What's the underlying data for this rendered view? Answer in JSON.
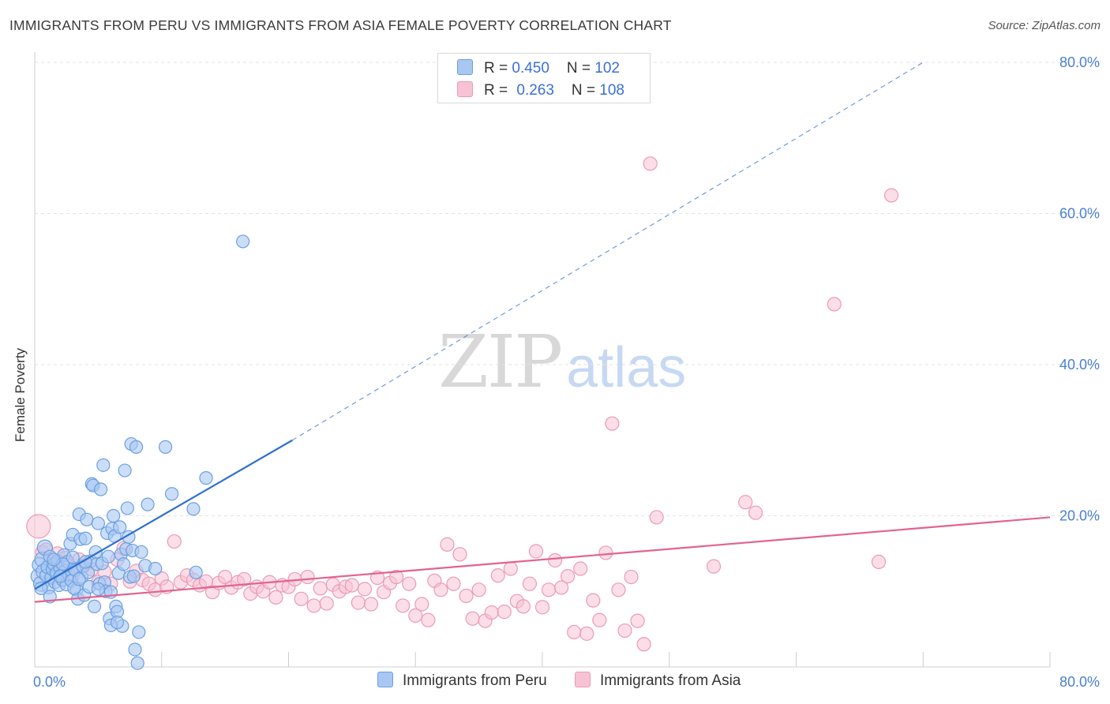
{
  "header": {
    "title": "IMMIGRANTS FROM PERU VS IMMIGRANTS FROM ASIA FEMALE POVERTY CORRELATION CHART",
    "source": "Source: ZipAtlas.com"
  },
  "watermark": {
    "zip": "ZIP",
    "atlas": "atlas"
  },
  "legend": {
    "rows": [
      {
        "r_label": "R = ",
        "r_value": "0.450",
        "n_label": "N = ",
        "n_value": "102",
        "color": "#7aa7e8"
      },
      {
        "r_label": "R = ",
        "r_value": "0.263",
        "n_label": "N = ",
        "n_value": "108",
        "color": "#f2a6bf"
      }
    ]
  },
  "colors": {
    "peru_fill": "#a8c8f3",
    "peru_stroke": "#6d9fe0",
    "peru_line": "#2f6fd1",
    "asia_fill": "#f7c3d4",
    "asia_stroke": "#ec9bb7",
    "asia_line": "#e2638f",
    "axis_text": "#4a7fd4",
    "grid": "#e3e3e3"
  },
  "chart_data": {
    "type": "scatter",
    "title": "IMMIGRANTS FROM PERU VS IMMIGRANTS FROM ASIA FEMALE POVERTY CORRELATION CHART",
    "xlabel": "",
    "ylabel": "Female Poverty",
    "xlim": [
      0,
      80
    ],
    "ylim": [
      0,
      80
    ],
    "x_tick_labels": [
      "0.0%",
      "80.0%"
    ],
    "y_ticks": [
      20,
      40,
      60,
      80
    ],
    "y_tick_labels": [
      "20.0%",
      "40.0%",
      "60.0%",
      "80.0%"
    ],
    "series": [
      {
        "name": "Immigrants from Peru",
        "R": 0.45,
        "N": 102,
        "trend": {
          "x0": 0,
          "y0": 10.3,
          "x1": 20.3,
          "y1": 30.0,
          "dashed_to_x": 70,
          "dashed_to_y": 80.0
        },
        "points": [
          [
            0.3,
            12.0
          ],
          [
            0.4,
            13.5
          ],
          [
            0.5,
            11.0
          ],
          [
            0.6,
            14.2
          ],
          [
            0.7,
            12.6
          ],
          [
            0.8,
            15.8
          ],
          [
            0.9,
            12.1
          ],
          [
            1.0,
            13.2
          ],
          [
            1.1,
            10.5
          ],
          [
            1.2,
            14.6
          ],
          [
            1.3,
            11.8
          ],
          [
            1.4,
            12.9
          ],
          [
            1.5,
            13.6
          ],
          [
            1.6,
            11.2
          ],
          [
            1.7,
            12.4
          ],
          [
            1.8,
            14.0
          ],
          [
            1.9,
            10.8
          ],
          [
            2.0,
            13.1
          ],
          [
            2.1,
            12.0
          ],
          [
            2.2,
            11.5
          ],
          [
            2.3,
            14.8
          ],
          [
            2.4,
            12.7
          ],
          [
            2.5,
            10.9
          ],
          [
            2.6,
            13.9
          ],
          [
            2.7,
            12.2
          ],
          [
            2.8,
            16.3
          ],
          [
            2.9,
            11.4
          ],
          [
            3.0,
            17.5
          ],
          [
            3.1,
            13.0
          ],
          [
            3.2,
            12.8
          ],
          [
            3.3,
            10.2
          ],
          [
            3.4,
            9.0
          ],
          [
            3.5,
            20.2
          ],
          [
            3.6,
            16.9
          ],
          [
            3.7,
            11.9
          ],
          [
            3.8,
            13.3
          ],
          [
            3.9,
            9.5
          ],
          [
            4.0,
            17.0
          ],
          [
            4.1,
            19.5
          ],
          [
            4.2,
            12.5
          ],
          [
            4.3,
            10.6
          ],
          [
            4.4,
            14.0
          ],
          [
            4.5,
            24.2
          ],
          [
            4.6,
            24.0
          ],
          [
            4.7,
            8.0
          ],
          [
            4.8,
            15.2
          ],
          [
            4.9,
            13.6
          ],
          [
            5.0,
            19.0
          ],
          [
            5.1,
            11.0
          ],
          [
            5.2,
            23.5
          ],
          [
            5.3,
            13.7
          ],
          [
            5.4,
            26.7
          ],
          [
            5.5,
            11.2
          ],
          [
            5.6,
            10.0
          ],
          [
            5.7,
            17.7
          ],
          [
            5.8,
            14.6
          ],
          [
            5.9,
            6.4
          ],
          [
            6.0,
            9.9
          ],
          [
            6.1,
            18.3
          ],
          [
            6.2,
            20.0
          ],
          [
            6.3,
            17.3
          ],
          [
            6.4,
            8.0
          ],
          [
            6.5,
            7.3
          ],
          [
            6.6,
            12.4
          ],
          [
            6.7,
            18.5
          ],
          [
            6.8,
            14.9
          ],
          [
            6.9,
            5.4
          ],
          [
            7.0,
            13.6
          ],
          [
            7.1,
            26.0
          ],
          [
            7.2,
            15.6
          ],
          [
            7.3,
            21.0
          ],
          [
            7.4,
            17.2
          ],
          [
            7.5,
            11.9
          ],
          [
            7.6,
            29.5
          ],
          [
            7.7,
            15.4
          ],
          [
            7.8,
            12.0
          ],
          [
            7.9,
            2.3
          ],
          [
            8.0,
            29.1
          ],
          [
            8.1,
            0.5
          ],
          [
            8.2,
            4.6
          ],
          [
            8.4,
            15.2
          ],
          [
            8.7,
            13.4
          ],
          [
            8.9,
            21.5
          ],
          [
            9.5,
            13.0
          ],
          [
            10.3,
            29.1
          ],
          [
            10.8,
            22.9
          ],
          [
            12.5,
            20.9
          ],
          [
            12.7,
            12.5
          ],
          [
            13.5,
            25.0
          ],
          [
            16.4,
            56.3
          ],
          [
            0.5,
            10.4
          ],
          [
            1.2,
            9.3
          ],
          [
            2.2,
            13.6
          ],
          [
            3.0,
            14.5
          ],
          [
            4.0,
            13.9
          ],
          [
            5.0,
            10.3
          ],
          [
            6.0,
            5.5
          ],
          [
            6.5,
            5.9
          ],
          [
            3.1,
            10.4
          ],
          [
            2.0,
            12.0
          ],
          [
            1.5,
            14.2
          ],
          [
            3.5,
            11.6
          ]
        ]
      },
      {
        "name": "Immigrants from Asia",
        "R": 0.263,
        "N": 108,
        "trend": {
          "x0": 0,
          "y0": 8.6,
          "x1": 80,
          "y1": 19.8
        },
        "points": [
          [
            0.3,
            18.6
          ],
          [
            0.6,
            15.2
          ],
          [
            0.9,
            15.5
          ],
          [
            1.2,
            14.0
          ],
          [
            1.5,
            13.0
          ],
          [
            1.8,
            15.0
          ],
          [
            2.1,
            12.0
          ],
          [
            2.4,
            14.4
          ],
          [
            2.7,
            13.4
          ],
          [
            3.0,
            12.2
          ],
          [
            3.5,
            14.2
          ],
          [
            4.0,
            13.5
          ],
          [
            4.5,
            12.9
          ],
          [
            5.0,
            11.2
          ],
          [
            5.5,
            12.6
          ],
          [
            6.0,
            11.0
          ],
          [
            6.5,
            14.2
          ],
          [
            7.0,
            15.7
          ],
          [
            7.5,
            11.3
          ],
          [
            8.0,
            12.7
          ],
          [
            8.5,
            11.5
          ],
          [
            9.0,
            11.0
          ],
          [
            9.5,
            10.2
          ],
          [
            10.0,
            11.7
          ],
          [
            10.4,
            10.6
          ],
          [
            11.0,
            16.6
          ],
          [
            11.5,
            11.2
          ],
          [
            12.0,
            12.1
          ],
          [
            12.5,
            11.5
          ],
          [
            13.0,
            10.8
          ],
          [
            13.5,
            11.3
          ],
          [
            14.0,
            9.9
          ],
          [
            14.5,
            11.1
          ],
          [
            15.0,
            11.9
          ],
          [
            15.5,
            10.5
          ],
          [
            16.0,
            11.2
          ],
          [
            16.5,
            11.6
          ],
          [
            17.0,
            9.7
          ],
          [
            17.5,
            10.6
          ],
          [
            18.0,
            10.0
          ],
          [
            18.5,
            11.2
          ],
          [
            19.0,
            9.2
          ],
          [
            19.5,
            10.8
          ],
          [
            20.0,
            10.6
          ],
          [
            20.5,
            11.6
          ],
          [
            21.0,
            9.0
          ],
          [
            21.5,
            11.9
          ],
          [
            22.0,
            8.1
          ],
          [
            22.5,
            10.4
          ],
          [
            23.0,
            8.4
          ],
          [
            23.5,
            10.9
          ],
          [
            24.0,
            10.0
          ],
          [
            24.5,
            10.6
          ],
          [
            25.0,
            10.8
          ],
          [
            25.5,
            8.5
          ],
          [
            26.0,
            10.3
          ],
          [
            26.5,
            8.3
          ],
          [
            27.0,
            11.8
          ],
          [
            27.5,
            9.9
          ],
          [
            28.0,
            11.1
          ],
          [
            28.5,
            11.9
          ],
          [
            29.0,
            8.1
          ],
          [
            29.5,
            11.0
          ],
          [
            30.0,
            6.8
          ],
          [
            30.5,
            8.3
          ],
          [
            31.0,
            6.2
          ],
          [
            31.5,
            11.4
          ],
          [
            32.0,
            10.2
          ],
          [
            32.5,
            16.2
          ],
          [
            33.0,
            11.0
          ],
          [
            33.5,
            14.9
          ],
          [
            34.0,
            9.4
          ],
          [
            34.5,
            6.4
          ],
          [
            35.0,
            10.2
          ],
          [
            35.5,
            6.1
          ],
          [
            36.0,
            7.2
          ],
          [
            36.5,
            12.1
          ],
          [
            37.0,
            7.3
          ],
          [
            37.5,
            13.0
          ],
          [
            38.0,
            8.7
          ],
          [
            38.5,
            8.0
          ],
          [
            39.0,
            11.0
          ],
          [
            39.5,
            15.3
          ],
          [
            40.0,
            7.9
          ],
          [
            40.5,
            10.2
          ],
          [
            41.0,
            14.1
          ],
          [
            41.5,
            10.5
          ],
          [
            42.0,
            12.0
          ],
          [
            42.5,
            4.6
          ],
          [
            43.0,
            13.0
          ],
          [
            43.5,
            4.4
          ],
          [
            44.0,
            8.8
          ],
          [
            44.5,
            6.2
          ],
          [
            45.0,
            15.1
          ],
          [
            45.5,
            32.2
          ],
          [
            46.0,
            10.2
          ],
          [
            46.5,
            4.8
          ],
          [
            47.0,
            11.9
          ],
          [
            47.5,
            6.1
          ],
          [
            48.0,
            3.0
          ],
          [
            48.5,
            66.6
          ],
          [
            49.0,
            19.8
          ],
          [
            53.5,
            13.3
          ],
          [
            56.0,
            21.8
          ],
          [
            56.8,
            20.4
          ],
          [
            63.0,
            48.0
          ],
          [
            66.5,
            13.9
          ],
          [
            67.5,
            62.4
          ]
        ]
      }
    ]
  },
  "bottom_legend": [
    {
      "label": "Immigrants from Peru",
      "color": "#a8c8f3",
      "border": "#6d9fe0"
    },
    {
      "label": "Immigrants from Asia",
      "color": "#f7c3d4",
      "border": "#ec9bb7"
    }
  ]
}
